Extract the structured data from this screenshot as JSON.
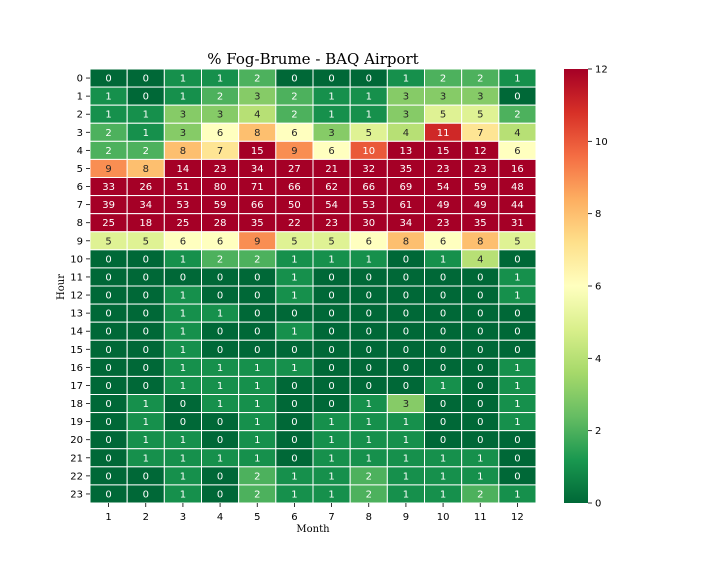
{
  "chart_data": {
    "type": "heatmap",
    "title": "% Fog-Brume - BAQ Airport",
    "xlabel": "Month",
    "ylabel": "Hour",
    "x_categories": [
      "1",
      "2",
      "3",
      "4",
      "5",
      "6",
      "7",
      "8",
      "9",
      "10",
      "11",
      "12"
    ],
    "y_categories": [
      "0",
      "1",
      "2",
      "3",
      "4",
      "5",
      "6",
      "7",
      "8",
      "9",
      "10",
      "11",
      "12",
      "13",
      "14",
      "15",
      "16",
      "17",
      "18",
      "19",
      "20",
      "21",
      "22",
      "23"
    ],
    "values": [
      [
        0,
        0,
        1,
        1,
        2,
        0,
        0,
        0,
        1,
        2,
        2,
        1
      ],
      [
        1,
        0,
        1,
        2,
        3,
        2,
        1,
        1,
        3,
        3,
        3,
        0
      ],
      [
        1,
        1,
        3,
        3,
        4,
        2,
        1,
        1,
        3,
        5,
        5,
        2
      ],
      [
        2,
        1,
        3,
        6,
        8,
        6,
        3,
        5,
        4,
        11,
        7,
        4
      ],
      [
        2,
        2,
        8,
        7,
        15,
        9,
        6,
        10,
        13,
        15,
        12,
        6
      ],
      [
        9,
        8,
        14,
        23,
        34,
        27,
        21,
        32,
        35,
        23,
        23,
        16
      ],
      [
        33,
        26,
        51,
        80,
        71,
        66,
        62,
        66,
        69,
        54,
        59,
        48
      ],
      [
        39,
        34,
        53,
        59,
        66,
        50,
        54,
        53,
        61,
        49,
        49,
        44
      ],
      [
        25,
        18,
        25,
        28,
        35,
        22,
        23,
        30,
        34,
        23,
        35,
        31
      ],
      [
        5,
        5,
        6,
        6,
        9,
        5,
        5,
        6,
        8,
        6,
        8,
        5
      ],
      [
        0,
        0,
        1,
        2,
        2,
        1,
        1,
        1,
        0,
        1,
        4,
        0
      ],
      [
        0,
        0,
        0,
        0,
        0,
        1,
        0,
        0,
        0,
        0,
        0,
        1
      ],
      [
        0,
        0,
        1,
        0,
        0,
        1,
        0,
        0,
        0,
        0,
        0,
        1
      ],
      [
        0,
        0,
        1,
        1,
        0,
        0,
        0,
        0,
        0,
        0,
        0,
        0
      ],
      [
        0,
        0,
        1,
        0,
        0,
        1,
        0,
        0,
        0,
        0,
        0,
        0
      ],
      [
        0,
        0,
        1,
        0,
        0,
        0,
        0,
        0,
        0,
        0,
        0,
        0
      ],
      [
        0,
        0,
        1,
        1,
        1,
        1,
        0,
        0,
        0,
        0,
        0,
        1
      ],
      [
        0,
        0,
        1,
        1,
        1,
        0,
        0,
        0,
        0,
        1,
        0,
        1
      ],
      [
        0,
        1,
        0,
        1,
        1,
        0,
        0,
        1,
        3,
        0,
        0,
        1
      ],
      [
        0,
        1,
        0,
        0,
        1,
        0,
        1,
        1,
        1,
        0,
        0,
        1
      ],
      [
        0,
        1,
        1,
        0,
        1,
        0,
        1,
        1,
        1,
        0,
        0,
        0
      ],
      [
        0,
        1,
        1,
        1,
        1,
        0,
        1,
        1,
        1,
        1,
        1,
        0
      ],
      [
        0,
        0,
        1,
        0,
        2,
        1,
        1,
        2,
        1,
        1,
        1,
        0
      ],
      [
        0,
        0,
        1,
        0,
        2,
        1,
        1,
        2,
        1,
        1,
        2,
        1
      ]
    ],
    "colorbar": {
      "min": 0,
      "max": 12,
      "ticks": [
        "0",
        "2",
        "4",
        "6",
        "8",
        "10",
        "12"
      ],
      "colormap": "RdYlGn_r",
      "colormap_stops": [
        "#006837",
        "#1a9850",
        "#66bd63",
        "#a6d96a",
        "#d9ef8b",
        "#ffffbf",
        "#fee08b",
        "#fdae61",
        "#f46d43",
        "#d73027",
        "#a50026"
      ]
    },
    "grid": false,
    "legend": "colorbar-right"
  }
}
